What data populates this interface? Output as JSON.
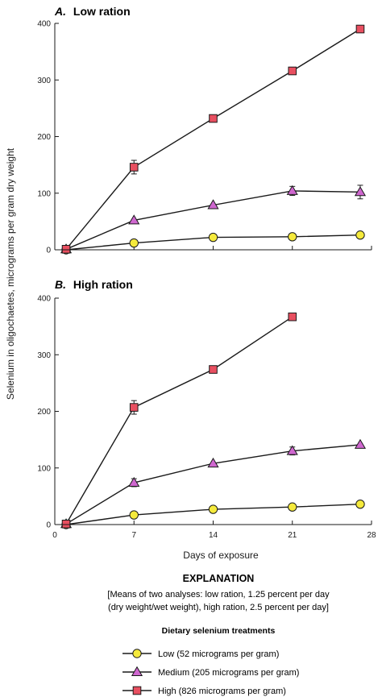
{
  "chart_data": [
    {
      "type": "line",
      "panel_letter": "A.",
      "title": "Low ration",
      "ylim": [
        0,
        400
      ],
      "yticks": [
        0,
        100,
        200,
        300,
        400
      ],
      "series": [
        {
          "key": "low",
          "points": [
            [
              1,
              0
            ],
            [
              7,
              12
            ],
            [
              14,
              22
            ],
            [
              21,
              23
            ],
            [
              27,
              26
            ]
          ],
          "errors": [
            0,
            0,
            0,
            0,
            0
          ]
        },
        {
          "key": "medium",
          "points": [
            [
              1,
              1
            ],
            [
              7,
              52
            ],
            [
              14,
              79
            ],
            [
              21,
              104
            ],
            [
              27,
              102
            ]
          ],
          "errors": [
            0,
            0,
            0,
            8,
            12
          ]
        },
        {
          "key": "high",
          "points": [
            [
              1,
              1
            ],
            [
              7,
              146
            ],
            [
              14,
              232
            ],
            [
              21,
              316
            ],
            [
              27,
              390
            ]
          ],
          "errors": [
            0,
            12,
            6,
            0,
            0
          ]
        }
      ]
    },
    {
      "type": "line",
      "panel_letter": "B.",
      "title": "High ration",
      "ylim": [
        0,
        400
      ],
      "yticks": [
        0,
        100,
        200,
        300,
        400
      ],
      "series": [
        {
          "key": "low",
          "points": [
            [
              1,
              0
            ],
            [
              7,
              17
            ],
            [
              14,
              27
            ],
            [
              21,
              31
            ],
            [
              27,
              36
            ]
          ],
          "errors": [
            0,
            0,
            0,
            0,
            0
          ]
        },
        {
          "key": "medium",
          "points": [
            [
              1,
              1
            ],
            [
              7,
              74
            ],
            [
              14,
              108
            ],
            [
              21,
              130
            ],
            [
              27,
              141
            ]
          ],
          "errors": [
            0,
            7,
            0,
            7,
            0
          ]
        },
        {
          "key": "high",
          "points": [
            [
              1,
              1
            ],
            [
              7,
              207
            ],
            [
              14,
              274
            ],
            [
              21,
              367
            ]
          ],
          "errors": [
            5,
            12,
            0,
            0
          ]
        }
      ]
    }
  ],
  "axes": {
    "xlim": [
      0,
      28
    ],
    "xticks": [
      0,
      7,
      14,
      21,
      28
    ],
    "xlabel": "Days of exposure",
    "ylabel": "Selenium in oligochaetes, micrograms per gram dry weight"
  },
  "explanation": {
    "title": "EXPLANATION",
    "note_line1": "[Means of two analyses: low ration, 1.25 percent per day",
    "note_line2": "(dry weight/wet weight), high ration, 2.5 percent per day]",
    "subtitle": "Dietary selenium treatments",
    "items": [
      {
        "key": "low",
        "marker": "circle",
        "label": "Low (52 micrograms per gram)"
      },
      {
        "key": "medium",
        "marker": "triangle",
        "label": "Medium (205 micrograms per gram)"
      },
      {
        "key": "high",
        "marker": "square",
        "label": "High (826 micrograms per gram)"
      }
    ]
  },
  "colors": {
    "low": "#f5ea3c",
    "medium": "#cf67cf",
    "high": "#e84f60",
    "line": "#1a1a1a"
  }
}
